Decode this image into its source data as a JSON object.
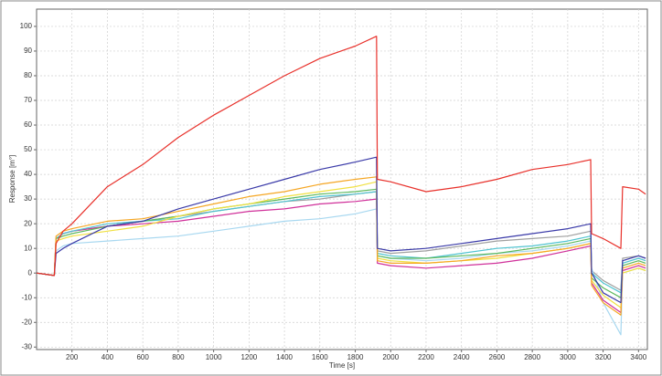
{
  "chart_data": {
    "type": "line",
    "xlabel": "Time [s]",
    "ylabel": "Response [m°]",
    "x": [
      0,
      100,
      110,
      150,
      200,
      400,
      600,
      800,
      1000,
      1200,
      1400,
      1600,
      1800,
      1920,
      1925,
      2000,
      2200,
      2400,
      2600,
      2800,
      3000,
      3130,
      3135,
      3200,
      3300,
      3310,
      3400,
      3440
    ],
    "series": [
      {
        "color": "#a0a0a0",
        "values": [
          0,
          -1,
          14,
          16,
          17,
          19,
          21,
          23,
          25,
          27,
          29,
          30,
          32,
          33,
          9,
          8,
          9,
          11,
          13,
          14,
          15,
          17,
          1,
          -3,
          -7,
          6,
          7,
          6
        ]
      },
      {
        "color": "#a8d8f0",
        "values": [
          0,
          -1,
          9,
          11,
          12,
          13,
          14,
          15,
          17,
          19,
          21,
          22,
          24,
          26,
          7,
          6,
          5,
          6,
          8,
          9,
          11,
          13,
          2,
          -12,
          -25,
          0,
          2,
          1
        ]
      },
      {
        "color": "#d0309a",
        "values": [
          0,
          -1,
          14,
          16,
          17,
          19,
          20,
          21,
          23,
          25,
          26,
          28,
          29,
          30,
          4,
          3,
          2,
          3,
          4,
          6,
          9,
          11,
          -4,
          -11,
          -16,
          1,
          3,
          2
        ]
      },
      {
        "color": "#4fc3d0",
        "values": [
          0,
          -1,
          14,
          16,
          17,
          20,
          21,
          22,
          25,
          27,
          29,
          31,
          32,
          33,
          8,
          7,
          6,
          8,
          10,
          11,
          13,
          15,
          0,
          -4,
          -8,
          4,
          6,
          5
        ]
      },
      {
        "color": "#5cb85c",
        "values": [
          0,
          -1,
          14,
          15,
          16,
          19,
          21,
          23,
          26,
          28,
          30,
          32,
          33,
          34,
          7,
          6,
          6,
          7,
          8,
          10,
          12,
          14,
          -2,
          -6,
          -10,
          3,
          5,
          4
        ]
      },
      {
        "color": "#f0e040",
        "values": [
          0,
          -1,
          13,
          14,
          15,
          17,
          19,
          23,
          26,
          28,
          31,
          33,
          35,
          37,
          6,
          5,
          4,
          5,
          6,
          8,
          10,
          12,
          -3,
          -9,
          -14,
          0,
          2,
          1
        ]
      },
      {
        "color": "#f5a623",
        "values": [
          0,
          -1,
          15,
          17,
          18,
          21,
          22,
          25,
          28,
          31,
          33,
          36,
          38,
          39,
          5,
          4,
          4,
          5,
          7,
          8,
          10,
          12,
          -5,
          -12,
          -17,
          2,
          4,
          3
        ]
      },
      {
        "color": "#3a3aa8",
        "values": [
          0,
          -1,
          8,
          10,
          12,
          19,
          21,
          26,
          30,
          34,
          38,
          42,
          45,
          47,
          10,
          9,
          10,
          12,
          14,
          16,
          18,
          20,
          0,
          -8,
          -12,
          5,
          7,
          6
        ]
      },
      {
        "color": "#e8302a",
        "values": [
          0,
          -1,
          12,
          17,
          20,
          35,
          44,
          55,
          64,
          72,
          80,
          87,
          92,
          96,
          38,
          37,
          33,
          35,
          38,
          42,
          44,
          46,
          16,
          14,
          10,
          35,
          34,
          32
        ]
      }
    ],
    "xlim": [
      0,
      3450
    ],
    "ylim": [
      -31,
      107
    ],
    "xticks": [
      200,
      400,
      600,
      800,
      1000,
      1200,
      1400,
      1600,
      1800,
      2000,
      2200,
      2400,
      2600,
      2800,
      3000,
      3200,
      3400
    ],
    "yticks": [
      -30,
      -20,
      -10,
      0,
      10,
      20,
      30,
      40,
      50,
      60,
      70,
      80,
      90,
      100
    ],
    "grid": true
  }
}
